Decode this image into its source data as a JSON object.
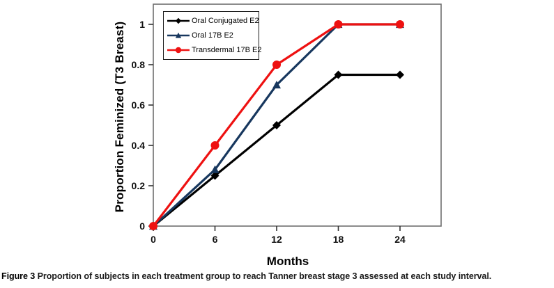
{
  "chart_data": {
    "type": "line",
    "title": "",
    "xlabel": "Months",
    "ylabel": "Proportion Feminized (T3 Breast)",
    "x": [
      0,
      6,
      12,
      18,
      24
    ],
    "x_tick_labels": [
      "0",
      "6",
      "12",
      "18",
      "24"
    ],
    "y_ticks": [
      0,
      0.2,
      0.4,
      0.6,
      0.8,
      1
    ],
    "y_tick_labels": [
      "0",
      "0.2",
      "0.4",
      "0.6",
      "0.8",
      "1"
    ],
    "xlim": [
      0,
      28
    ],
    "ylim": [
      0,
      1.1
    ],
    "grid": false,
    "legend_position": "top-left-inside",
    "series": [
      {
        "name": "Oral Conjugated E2",
        "color": "#000000",
        "marker": "diamond",
        "values": [
          0,
          0.25,
          0.5,
          0.75,
          0.75
        ]
      },
      {
        "name": "Oral 17B E2",
        "color": "#17375e",
        "marker": "triangle",
        "values": [
          0,
          0.28,
          0.7,
          1.0,
          1.0
        ]
      },
      {
        "name": "Transdermal 17B E2",
        "color": "#ee1111",
        "marker": "circle",
        "values": [
          0,
          0.4,
          0.8,
          1.0,
          1.0
        ]
      }
    ]
  },
  "caption": {
    "label": "Figure 3",
    "text": "Proportion of subjects in each treatment group to reach Tanner breast stage 3 assessed at each study interval."
  }
}
